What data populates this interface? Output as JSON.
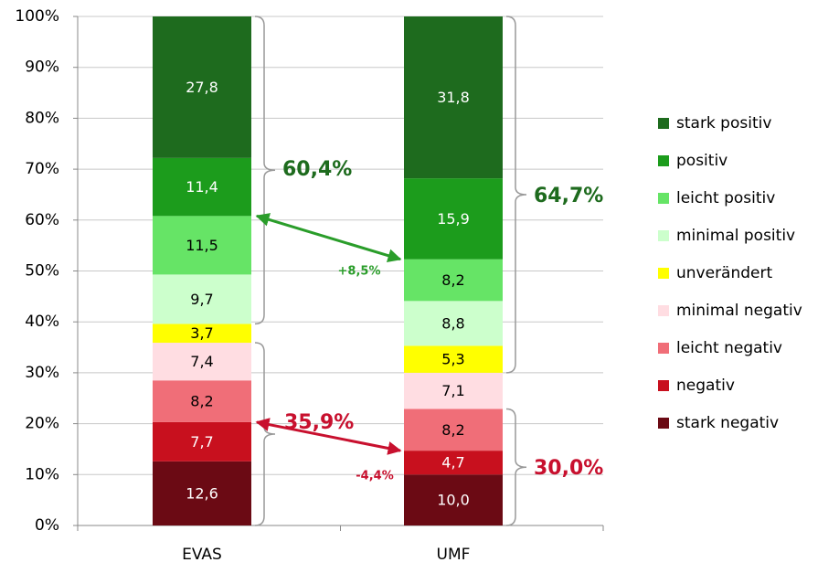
{
  "chart_data": {
    "type": "bar",
    "stacked": true,
    "categories": [
      "EVAS",
      "UMF"
    ],
    "ylim": [
      0,
      100
    ],
    "yticks": [
      {
        "value": 0,
        "label": "0%"
      },
      {
        "value": 10,
        "label": "10%"
      },
      {
        "value": 20,
        "label": "20%"
      },
      {
        "value": 30,
        "label": "30%"
      },
      {
        "value": 40,
        "label": "40%"
      },
      {
        "value": 50,
        "label": "50%"
      },
      {
        "value": 60,
        "label": "60%"
      },
      {
        "value": 70,
        "label": "70%"
      },
      {
        "value": 80,
        "label": "80%"
      },
      {
        "value": 90,
        "label": "90%"
      },
      {
        "value": 100,
        "label": "100%"
      }
    ],
    "grid": true,
    "legend": "right",
    "series": [
      {
        "name": "stark negativ",
        "color": "#6b0a14",
        "values": [
          12.6,
          10.0
        ],
        "value_labels": [
          "12,6",
          "10,0"
        ]
      },
      {
        "name": "negativ",
        "color": "#c8101e",
        "values": [
          7.7,
          4.7
        ],
        "value_labels": [
          "7,7",
          "4,7"
        ]
      },
      {
        "name": "leicht negativ",
        "color": "#f06e78",
        "values": [
          8.2,
          8.2
        ],
        "value_labels": [
          "8,2",
          "8,2"
        ]
      },
      {
        "name": "minimal negativ",
        "color": "#ffdde2",
        "values": [
          7.4,
          7.1
        ],
        "value_labels": [
          "7,4",
          "7,1"
        ]
      },
      {
        "name": "unverändert",
        "color": "#ffff00",
        "values": [
          3.7,
          5.3
        ],
        "value_labels": [
          "3,7",
          "5,3"
        ]
      },
      {
        "name": "minimal positiv",
        "color": "#ccffcc",
        "values": [
          9.7,
          8.8
        ],
        "value_labels": [
          "9,7",
          "8,8"
        ]
      },
      {
        "name": "leicht positiv",
        "color": "#66e466",
        "values": [
          11.5,
          8.2
        ],
        "value_labels": [
          "11,5",
          "8,2"
        ]
      },
      {
        "name": "positiv",
        "color": "#1c9c1c",
        "values": [
          11.4,
          15.9
        ],
        "value_labels": [
          "11,4",
          "15,9"
        ]
      },
      {
        "name": "stark positiv",
        "color": "#1e6b1e",
        "values": [
          27.8,
          31.8
        ],
        "value_labels": [
          "27,8",
          "31,8"
        ]
      }
    ],
    "annotations": [
      {
        "text": "60,4%",
        "color": "#1e6b1e"
      },
      {
        "text": "64,7%",
        "color": "#1e6b1e"
      },
      {
        "text": "35,9%",
        "color": "#c8102e"
      },
      {
        "text": "30,0%",
        "color": "#c8102e"
      },
      {
        "text": "+8,5%",
        "color": "#2a9d2a"
      },
      {
        "text": "-4,4%",
        "color": "#c8102e"
      }
    ]
  }
}
